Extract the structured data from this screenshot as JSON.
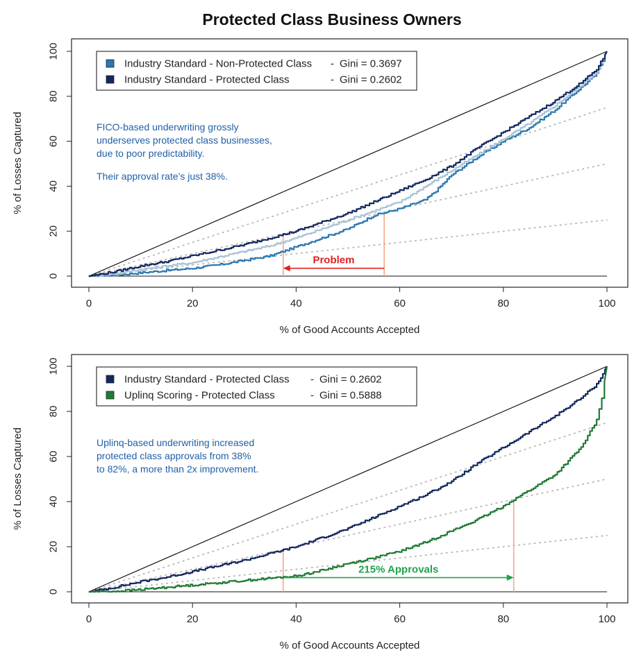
{
  "figure_title": "Protected Class Business Owners",
  "colors": {
    "non_protected": "#2b78b0",
    "non_protected_light": "#a9c3d6",
    "protected": "#14285f",
    "uplinq": "#1f7a34",
    "problem": "#e01f1f",
    "approvals": "#1fa34a",
    "marker": "#f4a68a",
    "note": "#1f5fa8",
    "ref": "#b8b8b8"
  },
  "chart_data": [
    {
      "type": "line",
      "xlabel": "% of Good Accounts Accepted",
      "ylabel": "% of Losses Captured",
      "xlim": [
        0,
        100
      ],
      "ylim": [
        0,
        100
      ],
      "xticks": [
        "0",
        "20",
        "40",
        "60",
        "80",
        "100"
      ],
      "yticks": [
        "0",
        "20",
        "40",
        "60",
        "80",
        "100"
      ],
      "legend": {
        "position": "top-left",
        "entries": [
          {
            "label": "Industry Standard - Non-Protected Class",
            "sep": "-",
            "gini": "Gini = 0.3697",
            "color_key": "non_protected"
          },
          {
            "label": "Industry Standard - Protected Class",
            "sep": "-",
            "gini": "Gini = 0.2602",
            "color_key": "protected"
          }
        ]
      },
      "notes": [
        "FICO-based underwriting grossly",
        "underserves protected class businesses,",
        "due to poor predictability.",
        "Their approval rate’s just 38%."
      ],
      "annotation": {
        "label": "Problem",
        "x_from": 57,
        "x_to": 37.5,
        "y": 3.5
      },
      "markers": [
        {
          "x": 37.5,
          "y_top": 18
        },
        {
          "x": 57,
          "y_top": 28.5
        }
      ],
      "series": [
        {
          "name": "Industry Standard - Non-Protected Class",
          "color_key": "non_protected",
          "x": [
            0,
            5,
            10,
            15,
            20,
            25,
            30,
            35,
            40,
            45,
            50,
            55,
            60,
            65,
            67,
            70,
            75,
            80,
            85,
            90,
            95,
            98,
            100
          ],
          "y": [
            0,
            0.5,
            1.5,
            2.5,
            3.5,
            5,
            7,
            9,
            13,
            17,
            21,
            27,
            30,
            34,
            38,
            45,
            53,
            60,
            66,
            74,
            84,
            90,
            100
          ]
        },
        {
          "name": "",
          "color_key": "non_protected_light",
          "x": [
            0,
            5,
            10,
            15,
            20,
            25,
            30,
            35,
            40,
            45,
            50,
            55,
            60,
            65,
            70,
            75,
            80,
            85,
            90,
            95,
            98,
            100
          ],
          "y": [
            0,
            1,
            3,
            4.5,
            6,
            8.5,
            11,
            13.5,
            17,
            21,
            25,
            29,
            33,
            40,
            47,
            54,
            61,
            68,
            76,
            85,
            91,
            100
          ]
        },
        {
          "name": "Industry Standard - Protected Class",
          "color_key": "protected",
          "x": [
            0,
            5,
            10,
            15,
            20,
            25,
            30,
            35,
            40,
            45,
            50,
            55,
            60,
            65,
            70,
            75,
            80,
            85,
            90,
            95,
            98,
            100
          ],
          "y": [
            0,
            2,
            4.5,
            6.5,
            9,
            11.5,
            14,
            17,
            20,
            24,
            28,
            33,
            38,
            43,
            49,
            57,
            64,
            71,
            78,
            86,
            92,
            100
          ]
        }
      ]
    },
    {
      "type": "line",
      "xlabel": "% of Good Accounts Accepted",
      "ylabel": "% of Losses Captured",
      "xlim": [
        0,
        100
      ],
      "ylim": [
        0,
        100
      ],
      "xticks": [
        "0",
        "20",
        "40",
        "60",
        "80",
        "100"
      ],
      "yticks": [
        "0",
        "20",
        "40",
        "60",
        "80",
        "100"
      ],
      "legend": {
        "position": "top-left",
        "entries": [
          {
            "label": "Industry Standard - Protected Class",
            "sep": "-",
            "gini": "Gini = 0.2602",
            "color_key": "protected"
          },
          {
            "label": "Uplinq Scoring - Protected Class",
            "sep": "-",
            "gini": "Gini = 0.5888",
            "color_key": "uplinq"
          }
        ]
      },
      "notes": [
        "Uplinq-based underwriting increased",
        "protected class approvals from 38%",
        "to 82%, a more than 2x improvement."
      ],
      "annotation": {
        "label": "215% Approvals",
        "x_from": 37.5,
        "x_to": 82,
        "y": 6.3
      },
      "markers": [
        {
          "x": 37.5,
          "y_top": 19
        },
        {
          "x": 82,
          "y_top": 40
        }
      ],
      "series": [
        {
          "name": "Industry Standard - Protected Class",
          "color_key": "protected",
          "x": [
            0,
            5,
            10,
            15,
            20,
            25,
            30,
            35,
            40,
            45,
            50,
            55,
            60,
            65,
            70,
            75,
            80,
            85,
            90,
            95,
            98,
            100
          ],
          "y": [
            0,
            2,
            4.5,
            6.5,
            9,
            11.5,
            14,
            17,
            20,
            24,
            28,
            33,
            38,
            43,
            49,
            57,
            64,
            71,
            78,
            86,
            92,
            100
          ]
        },
        {
          "name": "Uplinq Scoring - Protected Class",
          "color_key": "uplinq",
          "x": [
            0,
            5,
            10,
            15,
            20,
            25,
            30,
            35,
            40,
            45,
            50,
            55,
            60,
            65,
            70,
            75,
            80,
            82,
            85,
            90,
            95,
            98,
            99,
            100
          ],
          "y": [
            0,
            0.2,
            1,
            2,
            3,
            4,
            5,
            6,
            7,
            9.5,
            12.5,
            15,
            18,
            22,
            27,
            32,
            38,
            41,
            45,
            52,
            64,
            76,
            86,
            100
          ]
        }
      ]
    }
  ]
}
